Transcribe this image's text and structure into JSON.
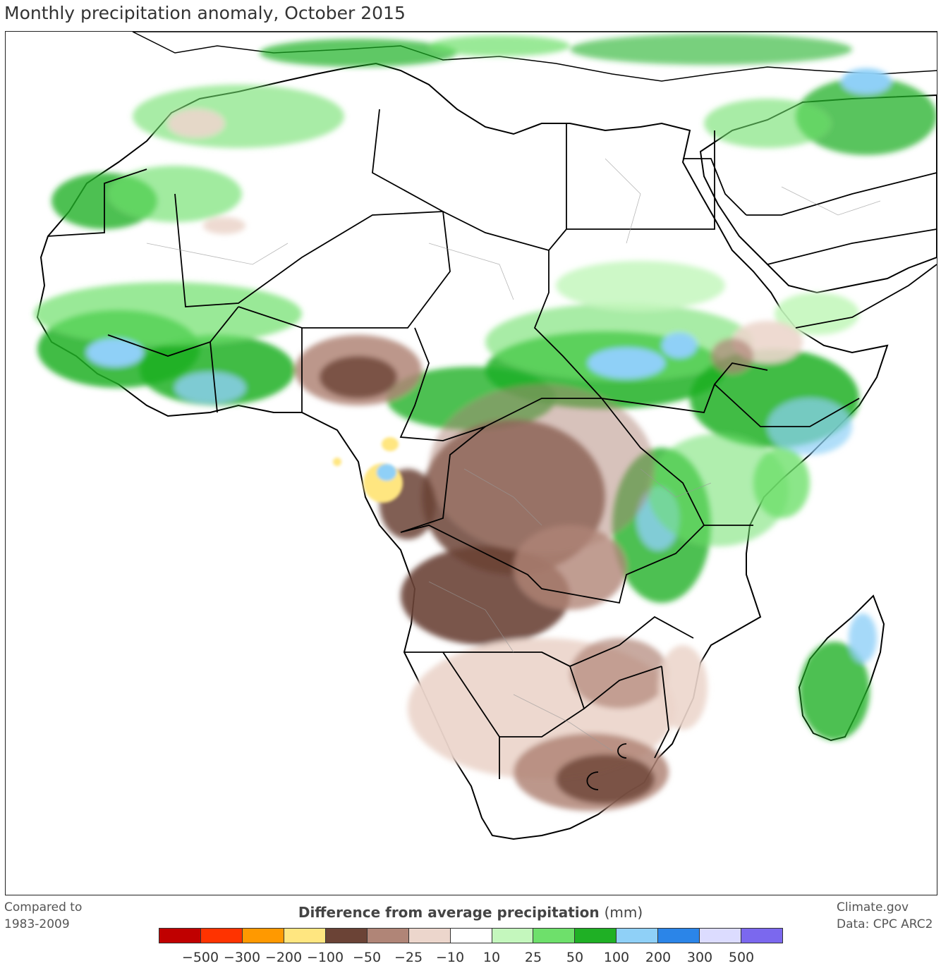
{
  "title": "Monthly precipitation anomaly, October 2015",
  "baseline_note": [
    "Compared to",
    "1983-2009"
  ],
  "credit": [
    "Climate.gov",
    "Data: CPC ARC2"
  ],
  "legend": {
    "title": "Difference from average precipitation",
    "unit": "(mm)",
    "colors": [
      "#c00000",
      "#ff3300",
      "#ff9900",
      "#ffe680",
      "#6b4336",
      "#b08577",
      "#ecd6cc",
      "#ffffff",
      "#c4f7bd",
      "#6ee06b",
      "#1fb025",
      "#8fd0f7",
      "#2b85e8",
      "#dcdcff",
      "#7b68ee"
    ],
    "ticks": [
      "−500",
      "−300",
      "−200",
      "−100",
      "−50",
      "−25",
      "−10",
      "10",
      "25",
      "50",
      "100",
      "200",
      "300",
      "500"
    ]
  },
  "map": {
    "region": "Africa",
    "palette": {
      "strong_wet": "#1fb025",
      "wet": "#6ee06b",
      "slight_wet": "#c4f7bd",
      "very_wet": "#8fd0f7",
      "slight_dry": "#ecd6cc",
      "dry": "#b08577",
      "very_dry": "#6b4336",
      "extreme_dry": "#ffe680",
      "border": "#000000"
    }
  }
}
